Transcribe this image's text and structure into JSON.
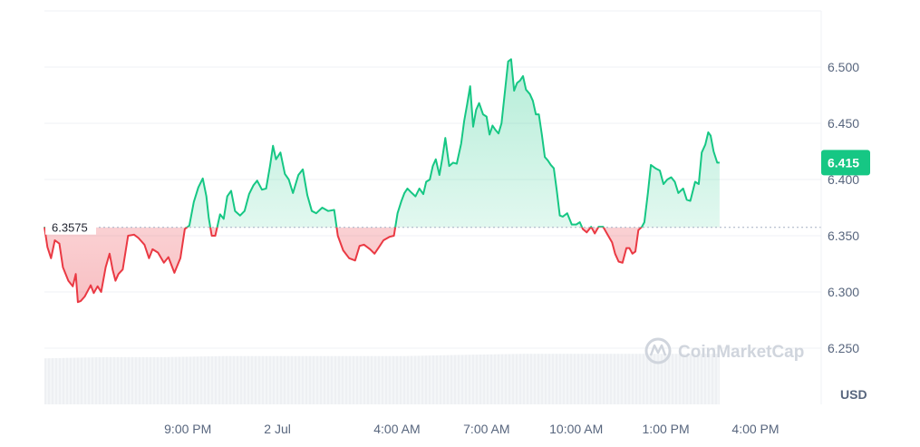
{
  "chart_data": {
    "type": "line",
    "currency_label": "USD",
    "watermark": "CoinMarketCap",
    "reference_value": 6.3575,
    "reference_label": "6.3575",
    "current_value": 6.415,
    "current_label": "6.415",
    "colors": {
      "up": "#16c784",
      "down": "#ea3943"
    },
    "ylim": [
      6.2,
      6.55
    ],
    "yticks": [
      "6.250",
      "6.300",
      "6.350",
      "6.400",
      "6.450",
      "6.500"
    ],
    "ytick_values": [
      6.25,
      6.3,
      6.35,
      6.4,
      6.45,
      6.5
    ],
    "xlim": [
      0,
      26
    ],
    "xticks": [
      "9:00 PM",
      "2 Jul",
      "4:00 AM",
      "7:00 AM",
      "10:00 AM",
      "1:00 PM",
      "4:00 PM"
    ],
    "xtick_values": [
      4.8,
      7.8,
      11.8,
      14.8,
      17.8,
      20.8,
      23.8
    ],
    "series": [
      {
        "values": [
          [
            0.0,
            6.358
          ],
          [
            0.1,
            6.34
          ],
          [
            0.22,
            6.33
          ],
          [
            0.35,
            6.346
          ],
          [
            0.5,
            6.343
          ],
          [
            0.62,
            6.322
          ],
          [
            0.8,
            6.31
          ],
          [
            0.95,
            6.305
          ],
          [
            1.05,
            6.316
          ],
          [
            1.12,
            6.291
          ],
          [
            1.22,
            6.292
          ],
          [
            1.35,
            6.296
          ],
          [
            1.45,
            6.301
          ],
          [
            1.55,
            6.306
          ],
          [
            1.65,
            6.299
          ],
          [
            1.78,
            6.305
          ],
          [
            1.9,
            6.3
          ],
          [
            2.05,
            6.322
          ],
          [
            2.18,
            6.334
          ],
          [
            2.28,
            6.32
          ],
          [
            2.38,
            6.31
          ],
          [
            2.48,
            6.316
          ],
          [
            2.62,
            6.32
          ],
          [
            2.8,
            6.35
          ],
          [
            3.0,
            6.351
          ],
          [
            3.15,
            6.348
          ],
          [
            3.35,
            6.342
          ],
          [
            3.5,
            6.33
          ],
          [
            3.62,
            6.338
          ],
          [
            3.8,
            6.335
          ],
          [
            4.0,
            6.326
          ],
          [
            4.15,
            6.331
          ],
          [
            4.35,
            6.317
          ],
          [
            4.55,
            6.33
          ],
          [
            4.7,
            6.356
          ],
          [
            4.85,
            6.359
          ],
          [
            5.0,
            6.38
          ],
          [
            5.15,
            6.393
          ],
          [
            5.3,
            6.401
          ],
          [
            5.42,
            6.385
          ],
          [
            5.5,
            6.366
          ],
          [
            5.6,
            6.35
          ],
          [
            5.72,
            6.35
          ],
          [
            5.88,
            6.369
          ],
          [
            6.0,
            6.365
          ],
          [
            6.12,
            6.385
          ],
          [
            6.25,
            6.39
          ],
          [
            6.38,
            6.372
          ],
          [
            6.55,
            6.368
          ],
          [
            6.7,
            6.372
          ],
          [
            6.85,
            6.387
          ],
          [
            7.0,
            6.395
          ],
          [
            7.12,
            6.399
          ],
          [
            7.28,
            6.391
          ],
          [
            7.42,
            6.392
          ],
          [
            7.55,
            6.412
          ],
          [
            7.65,
            6.43
          ],
          [
            7.75,
            6.418
          ],
          [
            7.9,
            6.424
          ],
          [
            8.05,
            6.405
          ],
          [
            8.18,
            6.4
          ],
          [
            8.32,
            6.388
          ],
          [
            8.5,
            6.404
          ],
          [
            8.65,
            6.409
          ],
          [
            8.8,
            6.386
          ],
          [
            8.95,
            6.372
          ],
          [
            9.1,
            6.37
          ],
          [
            9.3,
            6.375
          ],
          [
            9.5,
            6.372
          ],
          [
            9.7,
            6.373
          ],
          [
            9.82,
            6.35
          ],
          [
            10.0,
            6.337
          ],
          [
            10.2,
            6.33
          ],
          [
            10.4,
            6.328
          ],
          [
            10.55,
            6.341
          ],
          [
            10.7,
            6.342
          ],
          [
            10.9,
            6.338
          ],
          [
            11.05,
            6.334
          ],
          [
            11.2,
            6.34
          ],
          [
            11.35,
            6.346
          ],
          [
            11.55,
            6.349
          ],
          [
            11.7,
            6.35
          ],
          [
            11.82,
            6.37
          ],
          [
            11.95,
            6.381
          ],
          [
            12.05,
            6.388
          ],
          [
            12.15,
            6.392
          ],
          [
            12.3,
            6.388
          ],
          [
            12.42,
            6.385
          ],
          [
            12.55,
            6.392
          ],
          [
            12.68,
            6.387
          ],
          [
            12.78,
            6.398
          ],
          [
            12.9,
            6.4
          ],
          [
            13.0,
            6.412
          ],
          [
            13.1,
            6.418
          ],
          [
            13.22,
            6.404
          ],
          [
            13.32,
            6.419
          ],
          [
            13.42,
            6.437
          ],
          [
            13.55,
            6.412
          ],
          [
            13.68,
            6.415
          ],
          [
            13.8,
            6.414
          ],
          [
            13.95,
            6.432
          ],
          [
            14.05,
            6.452
          ],
          [
            14.15,
            6.467
          ],
          [
            14.25,
            6.483
          ],
          [
            14.35,
            6.447
          ],
          [
            14.45,
            6.462
          ],
          [
            14.55,
            6.468
          ],
          [
            14.68,
            6.458
          ],
          [
            14.8,
            6.456
          ],
          [
            14.9,
            6.44
          ],
          [
            15.0,
            6.448
          ],
          [
            15.1,
            6.444
          ],
          [
            15.2,
            6.441
          ],
          [
            15.3,
            6.45
          ],
          [
            15.42,
            6.48
          ],
          [
            15.52,
            6.505
          ],
          [
            15.62,
            6.507
          ],
          [
            15.72,
            6.479
          ],
          [
            15.82,
            6.486
          ],
          [
            15.92,
            6.488
          ],
          [
            16.02,
            6.492
          ],
          [
            16.12,
            6.48
          ],
          [
            16.25,
            6.476
          ],
          [
            16.35,
            6.47
          ],
          [
            16.45,
            6.458
          ],
          [
            16.55,
            6.458
          ],
          [
            16.65,
            6.44
          ],
          [
            16.75,
            6.42
          ],
          [
            16.85,
            6.417
          ],
          [
            16.95,
            6.413
          ],
          [
            17.05,
            6.41
          ],
          [
            17.15,
            6.39
          ],
          [
            17.25,
            6.368
          ],
          [
            17.35,
            6.367
          ],
          [
            17.5,
            6.37
          ],
          [
            17.65,
            6.36
          ],
          [
            17.8,
            6.36
          ],
          [
            17.92,
            6.362
          ],
          [
            18.02,
            6.356
          ],
          [
            18.15,
            6.353
          ],
          [
            18.3,
            6.358
          ],
          [
            18.42,
            6.352
          ],
          [
            18.55,
            6.358
          ],
          [
            18.7,
            6.358
          ],
          [
            18.85,
            6.351
          ],
          [
            19.0,
            6.344
          ],
          [
            19.1,
            6.334
          ],
          [
            19.22,
            6.327
          ],
          [
            19.35,
            6.326
          ],
          [
            19.48,
            6.339
          ],
          [
            19.58,
            6.339
          ],
          [
            19.68,
            6.334
          ],
          [
            19.78,
            6.336
          ],
          [
            19.88,
            6.355
          ],
          [
            20.0,
            6.358
          ],
          [
            20.08,
            6.362
          ],
          [
            20.2,
            6.388
          ],
          [
            20.3,
            6.413
          ],
          [
            20.45,
            6.41
          ],
          [
            20.6,
            6.408
          ],
          [
            20.72,
            6.396
          ],
          [
            20.85,
            6.4
          ],
          [
            20.98,
            6.402
          ],
          [
            21.1,
            6.398
          ],
          [
            21.22,
            6.388
          ],
          [
            21.38,
            6.392
          ],
          [
            21.5,
            6.382
          ],
          [
            21.62,
            6.381
          ],
          [
            21.78,
            6.398
          ],
          [
            21.9,
            6.396
          ],
          [
            22.0,
            6.424
          ],
          [
            22.12,
            6.431
          ],
          [
            22.22,
            6.442
          ],
          [
            22.3,
            6.439
          ],
          [
            22.4,
            6.425
          ],
          [
            22.52,
            6.415
          ],
          [
            22.6,
            6.415
          ]
        ]
      }
    ],
    "baseline_bars": [
      [
        0.0,
        6.241
      ],
      [
        2.0,
        6.242
      ],
      [
        4.0,
        6.242
      ],
      [
        6.0,
        6.243
      ],
      [
        8.0,
        6.243
      ],
      [
        10.0,
        6.243
      ],
      [
        12.0,
        6.243
      ],
      [
        14.0,
        6.244
      ],
      [
        16.0,
        6.245
      ],
      [
        18.0,
        6.245
      ],
      [
        20.0,
        6.245
      ],
      [
        22.0,
        6.245
      ],
      [
        22.6,
        6.245
      ]
    ]
  }
}
